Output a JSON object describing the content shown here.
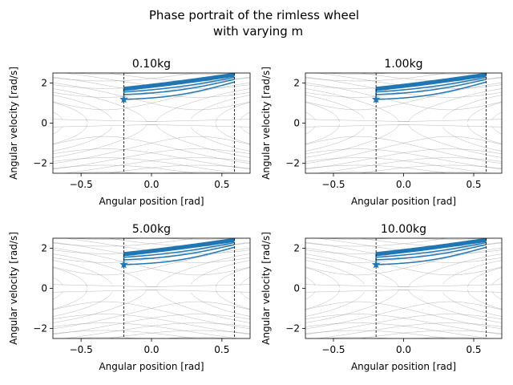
{
  "figure": {
    "title_line1": "Phase portrait of the rimless wheel",
    "title_line2": "with varying m"
  },
  "chart_data": [
    {
      "type": "line",
      "title": "0.10kg",
      "xlabel": "Angular position [rad]",
      "ylabel": "Angular velocity [rad/s]",
      "xlim": [
        -0.7,
        0.7
      ],
      "ylim": [
        -2.5,
        2.5
      ],
      "xticks": [
        -0.5,
        0.0,
        0.5
      ],
      "xtick_labels": [
        "−0.5",
        "0.0",
        "0.5"
      ],
      "yticks": [
        -2,
        0,
        2
      ],
      "ytick_labels": [
        "−2",
        "0",
        "2"
      ],
      "vlines": [
        -0.1963,
        0.589
      ],
      "start_point": [
        -0.1963,
        1.18
      ],
      "series_color": "#1f77b4",
      "background_color": "#808080"
    },
    {
      "type": "line",
      "title": "1.00kg",
      "xlabel": "Angular position [rad]",
      "ylabel": "Angular velocity [rad/s]",
      "xlim": [
        -0.7,
        0.7
      ],
      "ylim": [
        -2.5,
        2.5
      ],
      "xticks": [
        -0.5,
        0.0,
        0.5
      ],
      "xtick_labels": [
        "−0.5",
        "0.0",
        "0.5"
      ],
      "yticks": [
        -2,
        0,
        2
      ],
      "ytick_labels": [
        "−2",
        "0",
        "2"
      ],
      "vlines": [
        -0.1963,
        0.589
      ],
      "start_point": [
        -0.1963,
        1.18
      ],
      "series_color": "#1f77b4",
      "background_color": "#808080"
    },
    {
      "type": "line",
      "title": "5.00kg",
      "xlabel": "Angular position [rad]",
      "ylabel": "Angular velocity [rad/s]",
      "xlim": [
        -0.7,
        0.7
      ],
      "ylim": [
        -2.5,
        2.5
      ],
      "xticks": [
        -0.5,
        0.0,
        0.5
      ],
      "xtick_labels": [
        "−0.5",
        "0.0",
        "0.5"
      ],
      "yticks": [
        -2,
        0,
        2
      ],
      "ytick_labels": [
        "−2",
        "0",
        "2"
      ],
      "vlines": [
        -0.1963,
        0.589
      ],
      "start_point": [
        -0.1963,
        1.18
      ],
      "series_color": "#1f77b4",
      "background_color": "#808080"
    },
    {
      "type": "line",
      "title": "10.00kg",
      "xlabel": "Angular position [rad]",
      "ylabel": "Angular velocity [rad/s]",
      "xlim": [
        -0.7,
        0.7
      ],
      "ylim": [
        -2.5,
        2.5
      ],
      "xticks": [
        -0.5,
        0.0,
        0.5
      ],
      "xtick_labels": [
        "−0.5",
        "0.0",
        "0.5"
      ],
      "yticks": [
        -2,
        0,
        2
      ],
      "ytick_labels": [
        "−2",
        "0",
        "2"
      ],
      "vlines": [
        -0.1963,
        0.589
      ],
      "start_point": [
        -0.1963,
        1.18
      ],
      "series_color": "#1f77b4",
      "background_color": "#808080"
    }
  ]
}
